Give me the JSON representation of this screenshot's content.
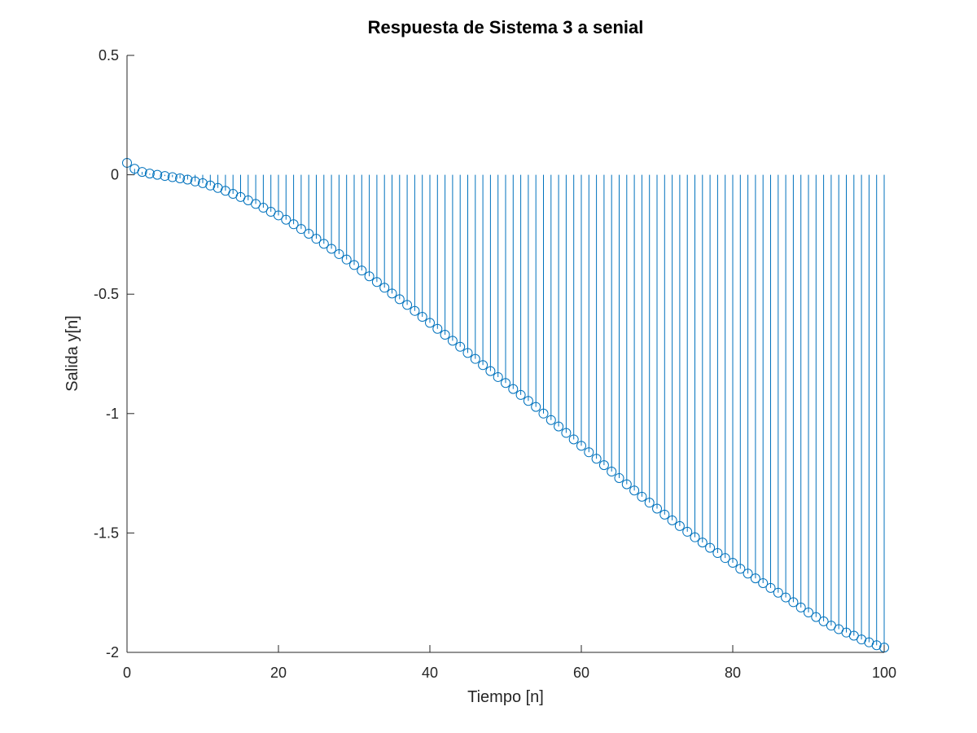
{
  "chart_data": {
    "type": "stem",
    "title": "Respuesta de Sistema 3 a senial",
    "xlabel": "Tiempo [n]",
    "ylabel": "Salida y[n]",
    "xlim": [
      0,
      100
    ],
    "ylim": [
      -2,
      0.5
    ],
    "xticks": [
      0,
      20,
      40,
      60,
      80,
      100
    ],
    "xtick_labels": [
      "0",
      "20",
      "40",
      "60",
      "80",
      "100"
    ],
    "yticks": [
      0.5,
      0,
      -0.5,
      -1,
      -1.5,
      -2
    ],
    "ytick_labels": [
      "0.5",
      "0",
      "-0.5",
      "-1",
      "-1.5",
      "-2"
    ],
    "grid": false,
    "legend": "none",
    "series": [
      {
        "color": "#0072BD",
        "marker": "open-circle",
        "x": [
          0,
          1,
          2,
          3,
          4,
          5,
          6,
          7,
          8,
          9,
          10,
          11,
          12,
          13,
          14,
          15,
          16,
          17,
          18,
          19,
          20,
          21,
          22,
          23,
          24,
          25,
          26,
          27,
          28,
          29,
          30,
          31,
          32,
          33,
          34,
          35,
          36,
          37,
          38,
          39,
          40,
          41,
          42,
          43,
          44,
          45,
          46,
          47,
          48,
          49,
          50,
          51,
          52,
          53,
          54,
          55,
          56,
          57,
          58,
          59,
          60,
          61,
          62,
          63,
          64,
          65,
          66,
          67,
          68,
          69,
          70,
          71,
          72,
          73,
          74,
          75,
          76,
          77,
          78,
          79,
          80,
          81,
          82,
          83,
          84,
          85,
          86,
          87,
          88,
          89,
          90,
          91,
          92,
          93,
          94,
          95,
          96,
          97,
          98,
          99,
          100
        ],
        "values": [
          0.05,
          0.025,
          0.012,
          0.005,
          0,
          -0.005,
          -0.01,
          -0.015,
          -0.02,
          -0.028,
          -0.035,
          -0.045,
          -0.055,
          -0.067,
          -0.08,
          -0.093,
          -0.107,
          -0.122,
          -0.138,
          -0.155,
          -0.17,
          -0.188,
          -0.207,
          -0.227,
          -0.247,
          -0.268,
          -0.289,
          -0.31,
          -0.332,
          -0.355,
          -0.378,
          -0.401,
          -0.425,
          -0.449,
          -0.473,
          -0.497,
          -0.521,
          -0.545,
          -0.57,
          -0.595,
          -0.62,
          -0.645,
          -0.67,
          -0.695,
          -0.72,
          -0.746,
          -0.771,
          -0.797,
          -0.822,
          -0.847,
          -0.872,
          -0.897,
          -0.922,
          -0.947,
          -0.972,
          -1.0,
          -1.027,
          -1.054,
          -1.081,
          -1.108,
          -1.135,
          -1.162,
          -1.189,
          -1.216,
          -1.243,
          -1.27,
          -1.296,
          -1.322,
          -1.348,
          -1.373,
          -1.398,
          -1.423,
          -1.447,
          -1.471,
          -1.495,
          -1.518,
          -1.54,
          -1.562,
          -1.584,
          -1.605,
          -1.625,
          -1.65,
          -1.67,
          -1.69,
          -1.71,
          -1.73,
          -1.75,
          -1.77,
          -1.79,
          -1.812,
          -1.833,
          -1.852,
          -1.87,
          -1.888,
          -1.903,
          -1.917,
          -1.93,
          -1.946,
          -1.958,
          -1.97,
          -1.98
        ]
      }
    ]
  }
}
